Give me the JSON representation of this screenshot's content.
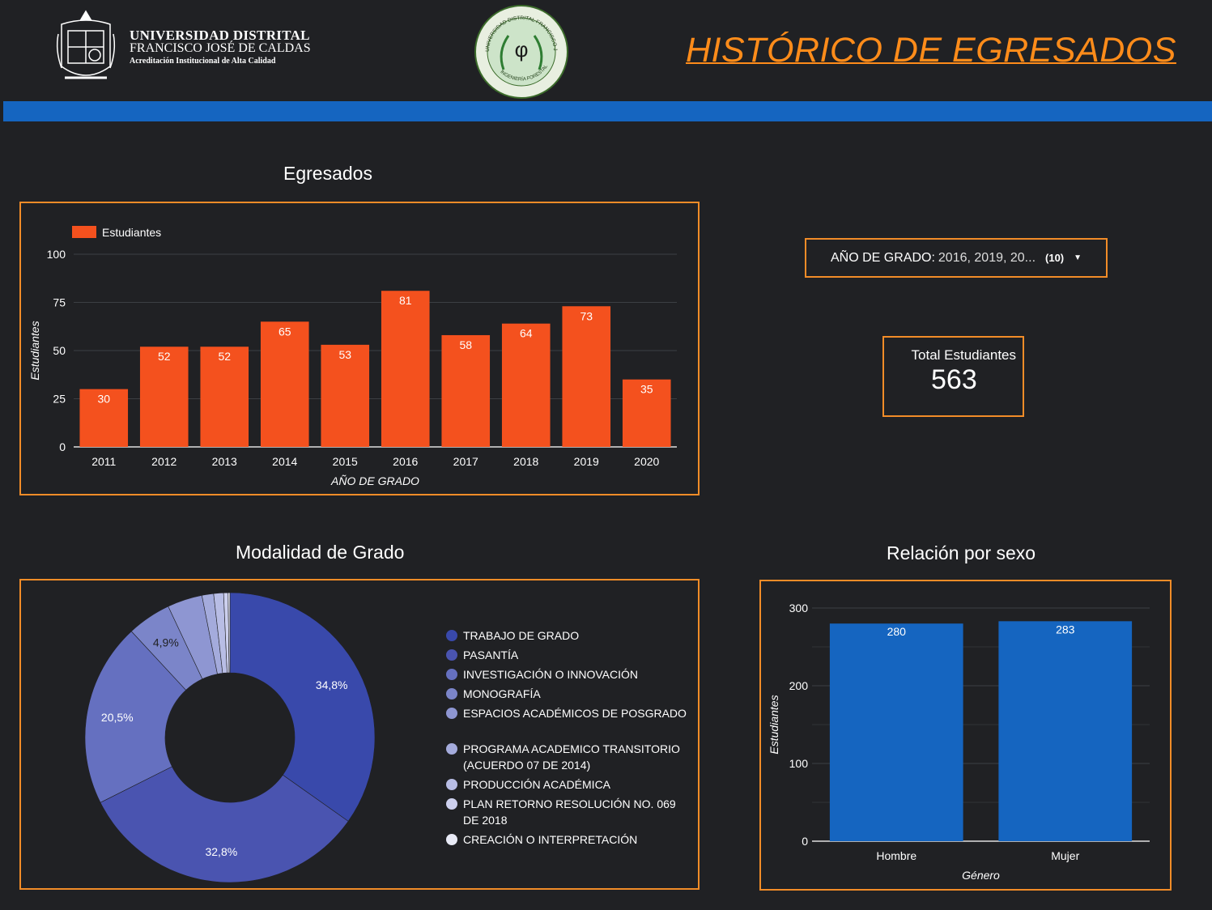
{
  "header": {
    "uni_line1": "UNIVERSIDAD DISTRITAL",
    "uni_line2": "FRANCISCO JOSÉ DE CALDAS",
    "uni_line3": "Acreditación Institucional de Alta Calidad",
    "seal_text_top": "UNIVERSIDAD DISTRITAL FRANCISCO JOSÉ DE CALDAS",
    "seal_text_bottom": "INGENIERÍA FORESTAL",
    "seal_symbol": "φ",
    "page_title": "HISTÓRICO DE EGRESADOS",
    "accent": "#ff8c1a",
    "band_color": "#1565c0"
  },
  "filter": {
    "label": "AÑO DE GRADO:",
    "value": "2016, 2019, 20...",
    "count": "(10)",
    "caret_icon": "caret-down-icon"
  },
  "kpi": {
    "label": "Total Estudiantes",
    "value": "563"
  },
  "sections": {
    "egresados": "Egresados",
    "modalidad": "Modalidad de Grado",
    "sexo": "Relación por sexo"
  },
  "chart_data": [
    {
      "type": "bar",
      "title": "Egresados",
      "legend": [
        "Estudiantes"
      ],
      "xlabel": "AÑO DE GRADO",
      "ylabel": "Estudiantes",
      "ylim": [
        0,
        100
      ],
      "yticks": [
        0,
        25,
        50,
        75,
        100
      ],
      "categories": [
        "2011",
        "2012",
        "2013",
        "2014",
        "2015",
        "2016",
        "2017",
        "2018",
        "2019",
        "2020"
      ],
      "series": [
        {
          "name": "Estudiantes",
          "values": [
            30,
            52,
            52,
            65,
            53,
            81,
            58,
            64,
            73,
            35
          ],
          "color": "#f4511e"
        }
      ],
      "grid": true,
      "legend_position": "top-left"
    },
    {
      "type": "pie",
      "title": "Modalidad de Grado",
      "donut": true,
      "categories": [
        "TRABAJO DE GRADO",
        "PASANTÍA",
        "INVESTIGACIÓN O INNOVACIÓN",
        "MONOGRAFÍA",
        "ESPACIOS ACADÉMICOS DE POSGRADO",
        "PROGRAMA ACADEMICO TRANSITORIO (ACUERDO 07 DE 2014)",
        "PRODUCCIÓN ACADÉMICA",
        "PLAN RETORNO RESOLUCIÓN NO. 069 DE 2018",
        "CREACIÓN O INTERPRETACIÓN"
      ],
      "values": [
        34.8,
        32.8,
        20.5,
        4.9,
        3.9,
        1.3,
        1.1,
        0.5,
        0.2
      ],
      "labels": [
        "34,8%",
        "32,8%",
        "20,5%",
        "4,9%",
        "",
        "",
        "",
        "",
        ""
      ],
      "colors": [
        "#3949ab",
        "#4a54b0",
        "#6570c0",
        "#7b85c9",
        "#8e96d2",
        "#a4abdc",
        "#b8bde5",
        "#cdd0ee",
        "#e8eaf6"
      ],
      "legend_position": "right"
    },
    {
      "type": "bar",
      "title": "Relación por sexo",
      "xlabel": "Género",
      "ylabel": "Estudiantes",
      "ylim": [
        0,
        300
      ],
      "yticks": [
        0,
        100,
        200,
        300
      ],
      "categories": [
        "Hombre",
        "Mujer"
      ],
      "series": [
        {
          "values": [
            280,
            283
          ],
          "color": "#1565c0"
        }
      ],
      "grid": true
    }
  ]
}
